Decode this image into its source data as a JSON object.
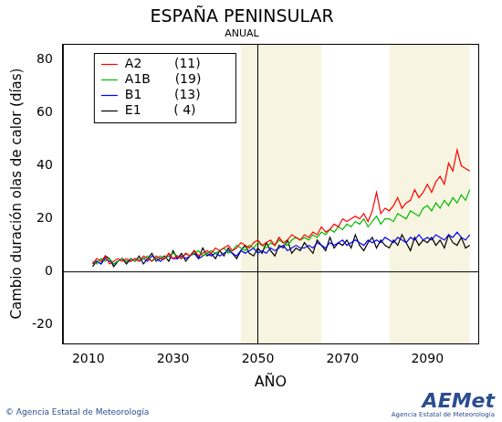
{
  "chart_data": {
    "type": "line",
    "title": "ESPAÑA PENINSULAR",
    "subtitle": "ANUAL",
    "x_label": "AÑO",
    "y_label": "Cambio duración olas de calor (días)",
    "source": "© Agencia Estatal de Meteorología",
    "logo": "AEMet",
    "logo_subtitle": "Agencia Estatal de Meteorología",
    "x": [
      2011,
      2012,
      2013,
      2014,
      2015,
      2016,
      2017,
      2018,
      2019,
      2020,
      2021,
      2022,
      2023,
      2024,
      2025,
      2026,
      2027,
      2028,
      2029,
      2030,
      2031,
      2032,
      2033,
      2034,
      2035,
      2036,
      2037,
      2038,
      2039,
      2040,
      2041,
      2042,
      2043,
      2044,
      2045,
      2046,
      2047,
      2048,
      2049,
      2050,
      2051,
      2052,
      2053,
      2054,
      2055,
      2056,
      2057,
      2058,
      2059,
      2060,
      2061,
      2062,
      2063,
      2064,
      2065,
      2066,
      2067,
      2068,
      2069,
      2070,
      2071,
      2072,
      2073,
      2074,
      2075,
      2076,
      2077,
      2078,
      2079,
      2080,
      2081,
      2082,
      2083,
      2084,
      2085,
      2086,
      2087,
      2088,
      2089,
      2090,
      2091,
      2092,
      2093,
      2094,
      2095,
      2096,
      2097,
      2098,
      2099,
      2100
    ],
    "series": [
      {
        "name": "A2        (11)",
        "color": "#ff0000",
        "values": [
          3,
          5,
          4,
          6,
          3,
          4,
          5,
          4,
          5,
          4,
          5,
          4,
          6,
          5,
          4,
          6,
          5,
          5,
          7,
          5,
          6,
          5,
          7,
          6,
          8,
          6,
          7,
          8,
          7,
          9,
          8,
          9,
          10,
          8,
          9,
          11,
          10,
          9,
          11,
          12,
          10,
          11,
          12,
          10,
          13,
          11,
          12,
          14,
          13,
          12,
          14,
          13,
          15,
          14,
          17,
          15,
          16,
          18,
          17,
          20,
          19,
          20,
          21,
          20,
          22,
          19,
          23,
          30,
          22,
          24,
          23,
          25,
          28,
          24,
          26,
          27,
          31,
          28,
          30,
          33,
          30,
          34,
          36,
          33,
          41,
          38,
          46,
          40,
          39,
          38
        ]
      },
      {
        "name": "A1B      (19)",
        "color": "#00bb00",
        "values": [
          4,
          3,
          5,
          4,
          5,
          3,
          4,
          5,
          4,
          5,
          4,
          5,
          5,
          6,
          4,
          5,
          6,
          5,
          6,
          7,
          6,
          5,
          7,
          6,
          7,
          8,
          6,
          7,
          8,
          7,
          8,
          9,
          7,
          8,
          10,
          9,
          8,
          10,
          9,
          11,
          10,
          9,
          11,
          10,
          12,
          11,
          10,
          12,
          13,
          12,
          13,
          12,
          14,
          13,
          15,
          14,
          16,
          15,
          17,
          16,
          18,
          17,
          19,
          18,
          20,
          17,
          19,
          21,
          18,
          20,
          20,
          19,
          22,
          21,
          20,
          23,
          22,
          21,
          24,
          25,
          23,
          26,
          24,
          27,
          25,
          28,
          26,
          29,
          27,
          31
        ]
      },
      {
        "name": "B1        (13)",
        "color": "#0000ff",
        "values": [
          3,
          4,
          3,
          5,
          4,
          3,
          4,
          5,
          4,
          4,
          5,
          4,
          5,
          4,
          6,
          5,
          4,
          5,
          6,
          5,
          5,
          6,
          5,
          6,
          7,
          5,
          6,
          7,
          6,
          7,
          6,
          7,
          8,
          7,
          6,
          8,
          7,
          8,
          9,
          7,
          8,
          7,
          9,
          8,
          9,
          10,
          8,
          9,
          10,
          9,
          9,
          10,
          9,
          11,
          10,
          9,
          11,
          10,
          11,
          12,
          10,
          11,
          12,
          11,
          10,
          12,
          11,
          12,
          11,
          13,
          12,
          11,
          13,
          12,
          11,
          13,
          12,
          14,
          12,
          13,
          12,
          14,
          13,
          12,
          14,
          13,
          15,
          13,
          12,
          14
        ]
      },
      {
        "name": "E1        ( 4)",
        "color": "#000000",
        "values": [
          2,
          4,
          3,
          6,
          5,
          2,
          4,
          5,
          3,
          5,
          4,
          6,
          3,
          5,
          7,
          4,
          5,
          6,
          4,
          8,
          5,
          7,
          4,
          6,
          8,
          5,
          9,
          6,
          7,
          5,
          8,
          6,
          9,
          7,
          5,
          8,
          10,
          7,
          6,
          9,
          7,
          11,
          8,
          6,
          10,
          9,
          12,
          7,
          9,
          8,
          11,
          9,
          7,
          12,
          10,
          8,
          13,
          9,
          11,
          10,
          12,
          9,
          14,
          10,
          8,
          11,
          13,
          9,
          12,
          10,
          9,
          12,
          10,
          14,
          11,
          8,
          13,
          10,
          12,
          11,
          13,
          10,
          12,
          9,
          14,
          11,
          10,
          13,
          9,
          10
        ]
      }
    ],
    "highlight_periods": [
      [
        2046,
        2065
      ],
      [
        2081,
        2100
      ]
    ],
    "reference_lines": {
      "x": 2050,
      "y": 0
    },
    "xlim": [
      2004,
      2102
    ],
    "xticks": [
      2010,
      2030,
      2050,
      2070,
      2090
    ],
    "ylim": [
      -27,
      86
    ],
    "yticks": [
      -20,
      0,
      20,
      40,
      60,
      80
    ],
    "grid": false,
    "legend": "upper left"
  }
}
